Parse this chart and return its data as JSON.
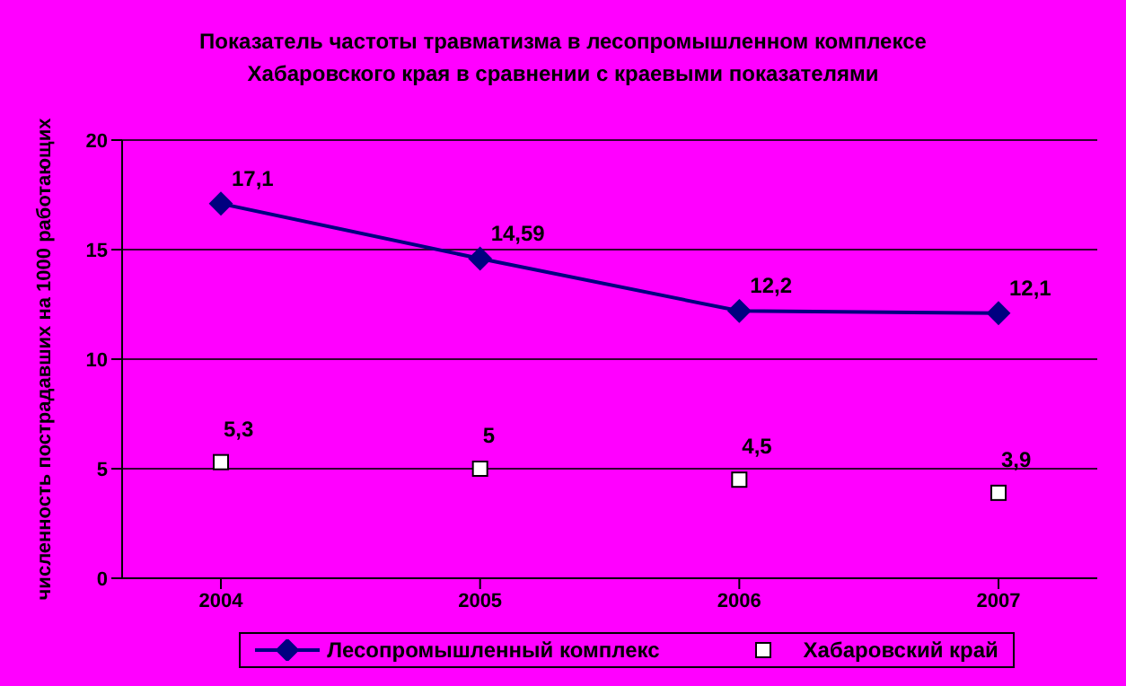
{
  "chart_data": {
    "type": "line",
    "title": "Показатель частоты травматизма в лесопромышленном комплексе\nХабаровского края в сравнении с краевыми показателями",
    "ylabel": "численность пострадавших на 1000 работающих",
    "categories": [
      "2004",
      "2005",
      "2006",
      "2007"
    ],
    "series": [
      {
        "name": "Лесопромышленный комплекс",
        "color": "#000080",
        "marker": "diamond",
        "values": [
          17.1,
          14.59,
          12.2,
          12.1
        ],
        "value_labels": [
          "17,1",
          "14,59",
          "12,2",
          "12,1"
        ]
      },
      {
        "name": "Хабаровский край",
        "type": "scatter",
        "color": "#000000",
        "marker": "square",
        "values": [
          5.3,
          5,
          4.5,
          3.9
        ],
        "value_labels": [
          "5,3",
          "5",
          "4,5",
          "3,9"
        ]
      }
    ],
    "ylim": [
      0,
      20
    ],
    "yticks": [
      0,
      5,
      10,
      15,
      20
    ],
    "grid": "y",
    "legend": "bottom"
  }
}
